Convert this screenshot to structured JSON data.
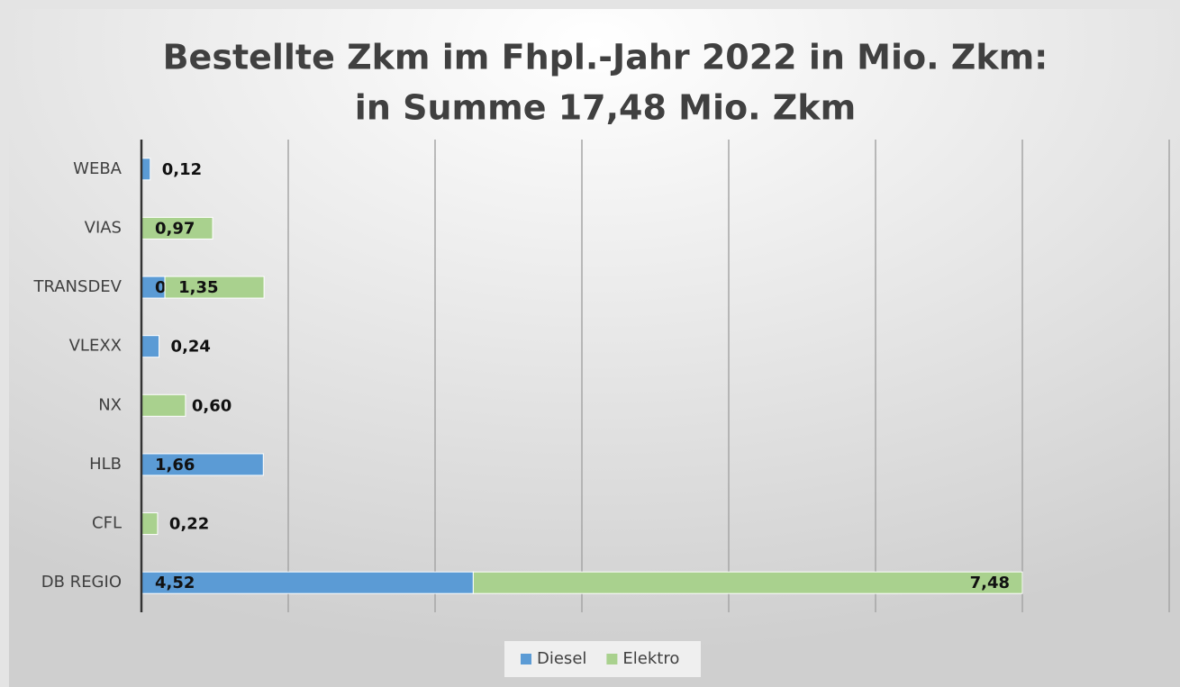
{
  "chart_data": {
    "type": "bar",
    "orientation": "horizontal",
    "stacked": true,
    "title": [
      "Bestellte Zkm im Fhpl.-Jahr 2022 in Mio. Zkm:",
      "in Summe 17,48 Mio. Zkm"
    ],
    "categories": [
      "WEBA",
      "VIAS",
      "TRANSDEV",
      "VLEXX",
      "NX",
      "HLB",
      "CFL",
      "DB REGIO"
    ],
    "series": [
      {
        "name": "Diesel",
        "color": "#5b9bd5",
        "values": [
          0.12,
          null,
          0.32,
          0.24,
          null,
          1.66,
          null,
          4.52
        ],
        "value_labels": [
          "0,12",
          null,
          "0,32",
          "0,24",
          null,
          "1,66",
          null,
          "4,52"
        ]
      },
      {
        "name": "Elektro",
        "color": "#a9d18e",
        "values": [
          null,
          0.97,
          1.35,
          null,
          0.6,
          null,
          0.22,
          7.48
        ],
        "value_labels": [
          null,
          "0,97",
          "1,35",
          null,
          "0,60",
          null,
          "0,22",
          "7,48"
        ]
      }
    ],
    "xlim": [
      0,
      14
    ],
    "xticks": [
      0,
      2,
      4,
      6,
      8,
      10,
      12,
      14
    ],
    "grid": true,
    "legend": "bottom"
  }
}
